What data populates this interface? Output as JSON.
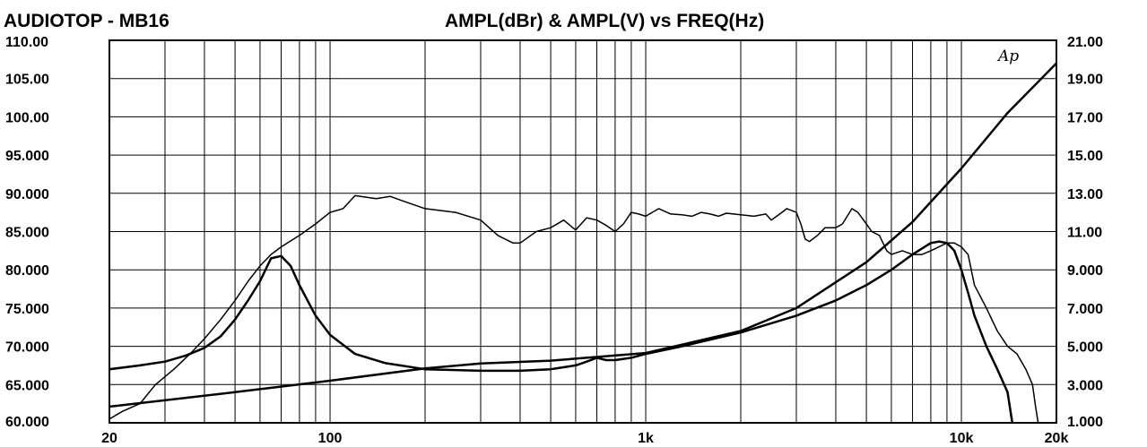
{
  "header": {
    "title": "AUDIOTOP - MB16",
    "subtitle": "AMPL(dBr) & AMPL(V) vs FREQ(Hz)",
    "logo": "Ap"
  },
  "chart_data": {
    "type": "line",
    "title": "AMPL(dBr) & AMPL(V) vs FREQ(Hz)",
    "xlabel": "",
    "ylabel": "",
    "x_scale": "log",
    "xlim": [
      20,
      20000
    ],
    "ylim_left": [
      60,
      110
    ],
    "ylim_right": [
      1,
      21
    ],
    "grid": true,
    "legend": "none",
    "x_tick_labels": [
      {
        "value": 20,
        "label": "20"
      },
      {
        "value": 100,
        "label": "100"
      },
      {
        "value": 1000,
        "label": "1k"
      },
      {
        "value": 10000,
        "label": "10k"
      },
      {
        "value": 20000,
        "label": "20k"
      }
    ],
    "y_left_tick_labels": [
      {
        "value": 110,
        "label": "110.00"
      },
      {
        "value": 105,
        "label": "105.00"
      },
      {
        "value": 100,
        "label": "100.00"
      },
      {
        "value": 95,
        "label": "95.000"
      },
      {
        "value": 90,
        "label": "90.000"
      },
      {
        "value": 85,
        "label": "85.000"
      },
      {
        "value": 80,
        "label": "80.000"
      },
      {
        "value": 75,
        "label": "75.000"
      },
      {
        "value": 70,
        "label": "70.000"
      },
      {
        "value": 65,
        "label": "65.000"
      },
      {
        "value": 60,
        "label": "60.000"
      }
    ],
    "y_right_tick_labels": [
      {
        "value": 21,
        "label": "21.00"
      },
      {
        "value": 19,
        "label": "19.00"
      },
      {
        "value": 17,
        "label": "17.00"
      },
      {
        "value": 15,
        "label": "15.00"
      },
      {
        "value": 13,
        "label": "13.00"
      },
      {
        "value": 11,
        "label": "11.00"
      },
      {
        "value": 9,
        "label": "9.000"
      },
      {
        "value": 7,
        "label": "7.000"
      },
      {
        "value": 5,
        "label": "5.000"
      },
      {
        "value": 3,
        "label": "3.000"
      },
      {
        "value": 1,
        "label": "1.000"
      }
    ],
    "series": [
      {
        "axis": "left",
        "stroke_width": 1.5,
        "points": [
          [
            20,
            60.5
          ],
          [
            22,
            61.5
          ],
          [
            25,
            62.5
          ],
          [
            28,
            65.0
          ],
          [
            32,
            67.0
          ],
          [
            36,
            69.0
          ],
          [
            40,
            71.0
          ],
          [
            45,
            73.5
          ],
          [
            50,
            76.0
          ],
          [
            55,
            78.5
          ],
          [
            60,
            80.5
          ],
          [
            65,
            82.0
          ],
          [
            70,
            83.0
          ],
          [
            80,
            84.5
          ],
          [
            90,
            86.0
          ],
          [
            100,
            87.5
          ],
          [
            110,
            88.0
          ],
          [
            120,
            89.7
          ],
          [
            130,
            89.5
          ],
          [
            140,
            89.3
          ],
          [
            155,
            89.6
          ],
          [
            170,
            89.0
          ],
          [
            200,
            88.0
          ],
          [
            250,
            87.5
          ],
          [
            300,
            86.5
          ],
          [
            340,
            84.5
          ],
          [
            380,
            83.5
          ],
          [
            400,
            83.5
          ],
          [
            450,
            85.0
          ],
          [
            500,
            85.5
          ],
          [
            550,
            86.5
          ],
          [
            600,
            85.2
          ],
          [
            650,
            86.8
          ],
          [
            700,
            86.5
          ],
          [
            750,
            85.8
          ],
          [
            800,
            85.0
          ],
          [
            850,
            86.0
          ],
          [
            900,
            87.5
          ],
          [
            950,
            87.3
          ],
          [
            1000,
            87.0
          ],
          [
            1100,
            88.0
          ],
          [
            1200,
            87.3
          ],
          [
            1300,
            87.2
          ],
          [
            1400,
            87.0
          ],
          [
            1500,
            87.5
          ],
          [
            1600,
            87.3
          ],
          [
            1700,
            87.0
          ],
          [
            1800,
            87.4
          ],
          [
            2000,
            87.2
          ],
          [
            2200,
            87.0
          ],
          [
            2400,
            87.3
          ],
          [
            2500,
            86.5
          ],
          [
            2600,
            87.0
          ],
          [
            2700,
            87.5
          ],
          [
            2800,
            88.0
          ],
          [
            3000,
            87.5
          ],
          [
            3100,
            86.0
          ],
          [
            3200,
            84.0
          ],
          [
            3300,
            83.7
          ],
          [
            3500,
            84.5
          ],
          [
            3700,
            85.5
          ],
          [
            4000,
            85.5
          ],
          [
            4200,
            86.0
          ],
          [
            4500,
            88.0
          ],
          [
            4700,
            87.5
          ],
          [
            5000,
            86.0
          ],
          [
            5200,
            85.0
          ],
          [
            5500,
            84.5
          ],
          [
            5800,
            82.5
          ],
          [
            6000,
            82.0
          ],
          [
            6500,
            82.5
          ],
          [
            7000,
            82.0
          ],
          [
            7500,
            82.0
          ],
          [
            8000,
            82.5
          ],
          [
            9000,
            83.5
          ],
          [
            9500,
            83.5
          ],
          [
            10000,
            83.0
          ],
          [
            10500,
            82.0
          ],
          [
            11000,
            78.0
          ],
          [
            12000,
            75.0
          ],
          [
            13000,
            72.0
          ],
          [
            14000,
            70.0
          ],
          [
            15000,
            69.0
          ],
          [
            16000,
            67.0
          ],
          [
            16800,
            65.0
          ],
          [
            17200,
            62.0
          ],
          [
            17500,
            60.0
          ]
        ]
      },
      {
        "axis": "left",
        "stroke_width": 2.5,
        "points": [
          [
            20,
            67.0
          ],
          [
            25,
            67.5
          ],
          [
            30,
            68.0
          ],
          [
            35,
            68.8
          ],
          [
            40,
            69.8
          ],
          [
            45,
            71.3
          ],
          [
            50,
            73.5
          ],
          [
            55,
            76.0
          ],
          [
            60,
            78.5
          ],
          [
            65,
            81.5
          ],
          [
            70,
            81.8
          ],
          [
            75,
            80.5
          ],
          [
            80,
            78.0
          ],
          [
            90,
            74.0
          ],
          [
            100,
            71.5
          ],
          [
            120,
            69.0
          ],
          [
            150,
            67.8
          ],
          [
            200,
            67.0
          ],
          [
            300,
            66.8
          ],
          [
            400,
            66.8
          ],
          [
            500,
            67.0
          ],
          [
            600,
            67.5
          ],
          [
            650,
            68.0
          ],
          [
            700,
            68.5
          ],
          [
            750,
            68.2
          ],
          [
            800,
            68.2
          ],
          [
            900,
            68.5
          ],
          [
            1000,
            69.0
          ],
          [
            1300,
            70.0
          ],
          [
            2000,
            71.8
          ],
          [
            3000,
            74.0
          ],
          [
            4000,
            76.0
          ],
          [
            5000,
            78.0
          ],
          [
            6000,
            80.0
          ],
          [
            7000,
            82.0
          ],
          [
            8000,
            83.5
          ],
          [
            8500,
            83.7
          ],
          [
            9000,
            83.5
          ],
          [
            9500,
            82.5
          ],
          [
            10000,
            80.0
          ],
          [
            10500,
            77.0
          ],
          [
            11000,
            74.0
          ],
          [
            12000,
            70.0
          ],
          [
            13000,
            67.0
          ],
          [
            14000,
            64.0
          ],
          [
            14500,
            60.0
          ]
        ]
      },
      {
        "axis": "right",
        "stroke_width": 2.5,
        "points": [
          [
            20,
            1.85
          ],
          [
            50,
            2.6
          ],
          [
            100,
            3.2
          ],
          [
            200,
            3.85
          ],
          [
            300,
            4.1
          ],
          [
            500,
            4.25
          ],
          [
            1000,
            4.65
          ],
          [
            2000,
            5.8
          ],
          [
            3000,
            7.0
          ],
          [
            5000,
            9.4
          ],
          [
            7000,
            11.5
          ],
          [
            10000,
            14.3
          ],
          [
            14000,
            17.2
          ],
          [
            20000,
            19.8
          ],
          [
            21000,
            20.0
          ]
        ]
      }
    ]
  }
}
